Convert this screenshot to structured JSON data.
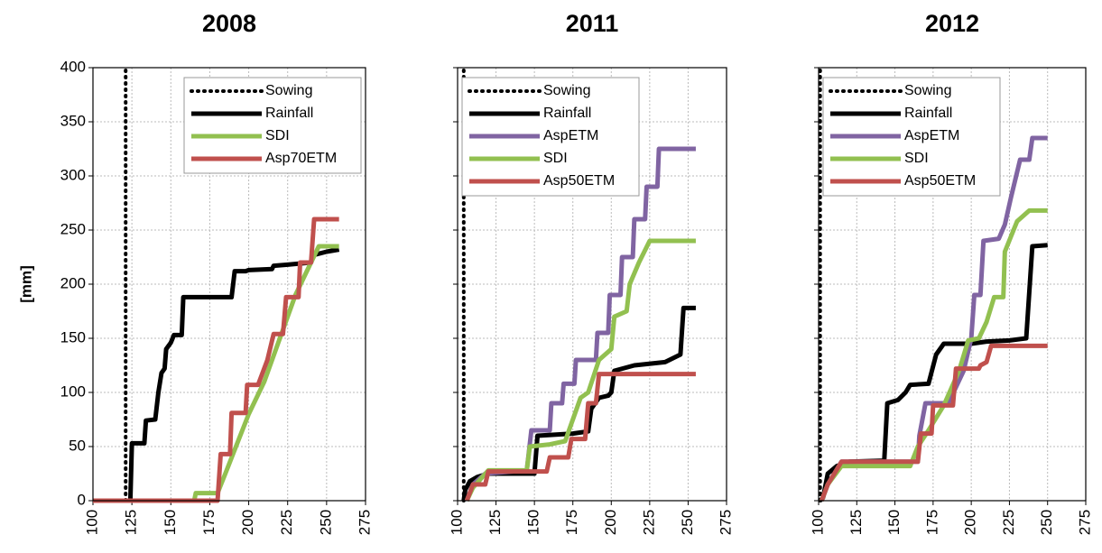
{
  "chart_data": [
    {
      "type": "line",
      "title": "2008",
      "ylabel": "[mm]",
      "xlim": [
        100,
        275
      ],
      "xticks": [
        100,
        125,
        150,
        175,
        200,
        225,
        250,
        275
      ],
      "ylim": [
        0,
        400
      ],
      "yticks": [
        0,
        50,
        100,
        150,
        200,
        250,
        300,
        350,
        400
      ],
      "grid": true,
      "legend": "upper right",
      "series": [
        {
          "name": "Sowing",
          "color": "#000000",
          "style": "dotted",
          "x": [
            121,
            121
          ],
          "values": [
            0,
            400
          ]
        },
        {
          "name": "Rainfall",
          "color": "#000000",
          "x": [
            100,
            124,
            125,
            133,
            134,
            140,
            142,
            144,
            146,
            147,
            150,
            152,
            157,
            158,
            189,
            191,
            198,
            200,
            215,
            216,
            225,
            240,
            242,
            250,
            258
          ],
          "values": [
            0,
            0,
            53,
            53,
            74,
            75,
            100,
            118,
            122,
            140,
            146,
            153,
            153,
            188,
            188,
            212,
            212,
            213,
            214,
            217,
            218,
            220,
            227,
            230,
            232
          ]
        },
        {
          "name": "SDI",
          "color": "#92c050",
          "x": [
            100,
            165,
            166,
            180,
            185,
            200,
            210,
            220,
            230,
            240,
            245,
            258
          ],
          "values": [
            0,
            0,
            7,
            7,
            25,
            80,
            110,
            150,
            190,
            220,
            235,
            235
          ]
        },
        {
          "name": "Asp70ETM",
          "color": "#c0504d",
          "x": [
            100,
            180,
            182,
            188,
            189,
            198,
            199,
            206,
            212,
            216,
            222,
            224,
            232,
            233,
            240,
            242,
            258
          ],
          "values": [
            0,
            0,
            43,
            43,
            81,
            81,
            107,
            107,
            130,
            154,
            154,
            188,
            188,
            220,
            220,
            260,
            260
          ]
        }
      ]
    },
    {
      "type": "line",
      "title": "2011",
      "xlim": [
        100,
        275
      ],
      "xticks": [
        100,
        125,
        150,
        175,
        200,
        225,
        250,
        275
      ],
      "ylim": [
        0,
        400
      ],
      "yticks": [
        0,
        50,
        100,
        150,
        200,
        250,
        300,
        350,
        400
      ],
      "grid": true,
      "legend": "upper left",
      "series": [
        {
          "name": "Sowing",
          "color": "#000000",
          "style": "dotted",
          "x": [
            104,
            104
          ],
          "values": [
            0,
            400
          ]
        },
        {
          "name": "Rainfall",
          "color": "#000000",
          "x": [
            104,
            105,
            108,
            113,
            120,
            150,
            152,
            175,
            185,
            187,
            192,
            198,
            200,
            202,
            215,
            235,
            245,
            247,
            255
          ],
          "values": [
            0,
            10,
            18,
            22,
            25,
            25,
            60,
            62,
            64,
            85,
            95,
            97,
            100,
            120,
            125,
            128,
            135,
            178,
            178
          ]
        },
        {
          "name": "AspETM",
          "color": "#8064a2",
          "x": [
            106,
            110,
            118,
            145,
            146,
            148,
            160,
            161,
            168,
            169,
            176,
            177,
            190,
            191,
            198,
            199,
            206,
            207,
            214,
            215,
            222,
            223,
            230,
            231,
            255
          ],
          "values": [
            0,
            15,
            25,
            28,
            40,
            65,
            65,
            90,
            90,
            108,
            108,
            130,
            130,
            155,
            155,
            190,
            190,
            225,
            225,
            260,
            260,
            290,
            290,
            325,
            325
          ]
        },
        {
          "name": "SDI",
          "color": "#92c050",
          "x": [
            106,
            110,
            120,
            145,
            147,
            160,
            170,
            175,
            180,
            185,
            192,
            200,
            202,
            210,
            212,
            218,
            225,
            255
          ],
          "values": [
            0,
            12,
            28,
            28,
            50,
            52,
            55,
            75,
            95,
            100,
            130,
            140,
            170,
            175,
            200,
            220,
            240,
            240
          ]
        },
        {
          "name": "Asp50ETM",
          "color": "#c0504d",
          "x": [
            106,
            110,
            118,
            120,
            158,
            160,
            172,
            174,
            183,
            185,
            190,
            192,
            255
          ],
          "values": [
            0,
            15,
            15,
            27,
            27,
            40,
            40,
            57,
            57,
            90,
            90,
            117,
            117
          ]
        }
      ]
    },
    {
      "type": "line",
      "title": "2012",
      "xlim": [
        100,
        275
      ],
      "xticks": [
        100,
        125,
        150,
        175,
        200,
        225,
        250,
        275
      ],
      "ylim": [
        0,
        400
      ],
      "yticks": [
        0,
        50,
        100,
        150,
        200,
        250,
        300,
        350,
        400
      ],
      "grid": true,
      "legend": "upper left",
      "series": [
        {
          "name": "Sowing",
          "color": "#000000",
          "style": "dotted",
          "x": [
            101,
            101
          ],
          "values": [
            0,
            400
          ]
        },
        {
          "name": "Rainfall",
          "color": "#000000",
          "x": [
            101,
            103,
            106,
            112,
            120,
            143,
            145,
            152,
            157,
            160,
            172,
            177,
            182,
            200,
            210,
            225,
            236,
            240,
            250
          ],
          "values": [
            0,
            3,
            25,
            32,
            36,
            37,
            90,
            93,
            100,
            107,
            108,
            135,
            145,
            145,
            147,
            148,
            150,
            235,
            236
          ]
        },
        {
          "name": "AspETM",
          "color": "#8064a2",
          "x": [
            102,
            106,
            115,
            165,
            166,
            170,
            185,
            195,
            200,
            202,
            206,
            208,
            218,
            222,
            226,
            232,
            238,
            240,
            250
          ],
          "values": [
            0,
            15,
            36,
            36,
            60,
            90,
            90,
            120,
            150,
            190,
            190,
            240,
            242,
            255,
            280,
            315,
            315,
            335,
            335
          ]
        },
        {
          "name": "SDI",
          "color": "#92c050",
          "x": [
            102,
            106,
            115,
            160,
            165,
            172,
            182,
            192,
            198,
            205,
            210,
            215,
            221,
            222,
            230,
            238,
            250
          ],
          "values": [
            0,
            15,
            32,
            32,
            50,
            65,
            88,
            120,
            148,
            150,
            165,
            188,
            188,
            230,
            258,
            268,
            268
          ]
        },
        {
          "name": "Asp50ETM",
          "color": "#c0504d",
          "x": [
            102,
            106,
            115,
            165,
            167,
            174,
            175,
            188,
            190,
            205,
            206,
            210,
            213,
            250
          ],
          "values": [
            0,
            15,
            36,
            36,
            62,
            62,
            88,
            88,
            122,
            122,
            125,
            128,
            143,
            143
          ]
        }
      ]
    }
  ]
}
